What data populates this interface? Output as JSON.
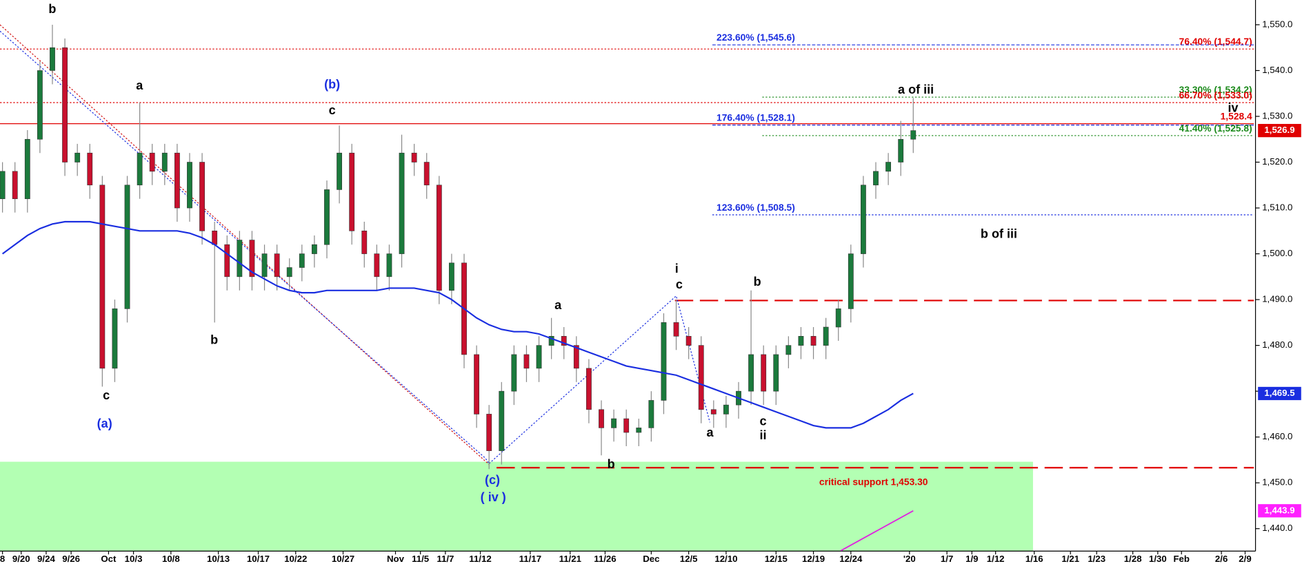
{
  "chart_data": {
    "type": "candlestick",
    "xlim": [
      -0.2,
      100.3
    ],
    "ylim": [
      1435.1,
      1555.4
    ],
    "xticks": [
      {
        "value": 0,
        "label": "8"
      },
      {
        "value": 1.5,
        "label": "9/20"
      },
      {
        "value": 3.5,
        "label": "9/24"
      },
      {
        "value": 5.5,
        "label": "9/26"
      },
      {
        "value": 8.5,
        "label": "Oct"
      },
      {
        "value": 10.5,
        "label": "10/3"
      },
      {
        "value": 13.5,
        "label": "10/8"
      },
      {
        "value": 17.3,
        "label": "10/13"
      },
      {
        "value": 20.5,
        "label": "10/17"
      },
      {
        "value": 23.5,
        "label": "10/22"
      },
      {
        "value": 27.3,
        "label": "10/27"
      },
      {
        "value": 31.5,
        "label": "Nov"
      },
      {
        "value": 33.5,
        "label": "11/5"
      },
      {
        "value": 35.5,
        "label": "11/7"
      },
      {
        "value": 38.3,
        "label": "11/12"
      },
      {
        "value": 42.3,
        "label": "11/17"
      },
      {
        "value": 45.5,
        "label": "11/21"
      },
      {
        "value": 48.3,
        "label": "11/26"
      },
      {
        "value": 52,
        "label": "Dec"
      },
      {
        "value": 55,
        "label": "12/5"
      },
      {
        "value": 58,
        "label": "12/10"
      },
      {
        "value": 62,
        "label": "12/15"
      },
      {
        "value": 65,
        "label": "12/19"
      },
      {
        "value": 68,
        "label": "12/24"
      },
      {
        "value": 72.7,
        "label": "'20"
      },
      {
        "value": 75.7,
        "label": "1/7"
      },
      {
        "value": 77.7,
        "label": "1/9"
      },
      {
        "value": 79.6,
        "label": "1/12"
      },
      {
        "value": 82.7,
        "label": "1/16"
      },
      {
        "value": 85.6,
        "label": "1/21"
      },
      {
        "value": 87.7,
        "label": "1/23"
      },
      {
        "value": 90.6,
        "label": "1/28"
      },
      {
        "value": 92.6,
        "label": "1/30"
      },
      {
        "value": 94.5,
        "label": "Feb"
      },
      {
        "value": 97.7,
        "label": "2/6"
      },
      {
        "value": 99.6,
        "label": "2/9"
      }
    ],
    "yticks": [
      {
        "value": 1440,
        "label": "1,440.0"
      },
      {
        "value": 1450,
        "label": "1,450.0"
      },
      {
        "value": 1460,
        "label": "1,460.0"
      },
      {
        "value": 1470,
        "label": "1,470.0"
      },
      {
        "value": 1480,
        "label": "1,480.0"
      },
      {
        "value": 1490,
        "label": "1,490.0"
      },
      {
        "value": 1500,
        "label": "1,500.0"
      },
      {
        "value": 1510,
        "label": "1,510.0"
      },
      {
        "value": 1520,
        "label": "1,520.0"
      },
      {
        "value": 1530,
        "label": "1,530.0"
      },
      {
        "value": 1540,
        "label": "1,540.0"
      },
      {
        "value": 1550,
        "label": "1,550.0"
      }
    ],
    "up_color": "#1b7a3c",
    "down_color": "#c8102e",
    "open": [
      1512,
      1518,
      1512,
      1525,
      1540,
      1545,
      1520,
      1522,
      1515,
      1475,
      1488,
      1515,
      1522,
      1518,
      1522,
      1510,
      1520,
      1505,
      1502,
      1495,
      1503,
      1495,
      1500,
      1495,
      1497,
      1500,
      1502,
      1514,
      1522,
      1505,
      1500,
      1495,
      1500,
      1522,
      1520,
      1515,
      1492,
      1498,
      1478,
      1465,
      1457,
      1470,
      1478,
      1475,
      1480,
      1482,
      1480,
      1475,
      1466,
      1462,
      1464,
      1461,
      1462,
      1468,
      1485,
      1482,
      1480,
      1466,
      1465,
      1467,
      1470,
      1478,
      1470,
      1478,
      1480,
      1482,
      1480,
      1484,
      1488,
      1500,
      1515,
      1518,
      1520,
      1525
    ],
    "high": [
      1520,
      1520,
      1527,
      1542,
      1550,
      1547,
      1524,
      1524,
      1517,
      1490,
      1517,
      1533,
      1524,
      1524,
      1524,
      1522,
      1522,
      1507,
      1504,
      1505,
      1505,
      1502,
      1502,
      1499,
      1502,
      1504,
      1516,
      1528,
      1524,
      1507,
      1502,
      1502,
      1526,
      1524,
      1522,
      1517,
      1500,
      1500,
      1480,
      1467,
      1472,
      1480,
      1480,
      1482,
      1486,
      1484,
      1482,
      1477,
      1468,
      1466,
      1466,
      1464,
      1470,
      1487,
      1490,
      1484,
      1482,
      1468,
      1469,
      1472,
      1492,
      1480,
      1480,
      1482,
      1484,
      1484,
      1486,
      1490,
      1502,
      1517,
      1520,
      1522,
      1529,
      1534
    ],
    "low": [
      1509,
      1509,
      1509,
      1522,
      1537,
      1517,
      1517,
      1512,
      1471,
      1472,
      1485,
      1512,
      1515,
      1515,
      1507,
      1507,
      1502,
      1485,
      1492,
      1492,
      1492,
      1492,
      1492,
      1492,
      1494,
      1497,
      1499,
      1511,
      1502,
      1497,
      1492,
      1492,
      1497,
      1517,
      1512,
      1489,
      1489,
      1475,
      1462,
      1453,
      1454,
      1467,
      1472,
      1472,
      1477,
      1477,
      1472,
      1463,
      1456,
      1459,
      1458,
      1458,
      1459,
      1465,
      1479,
      1477,
      1463,
      1462,
      1462,
      1464,
      1467,
      1467,
      1467,
      1475,
      1477,
      1477,
      1477,
      1481,
      1485,
      1497,
      1512,
      1515,
      1517,
      1522
    ],
    "close": [
      1518,
      1512,
      1525,
      1540,
      1545,
      1520,
      1522,
      1515,
      1475,
      1488,
      1515,
      1522,
      1518,
      1522,
      1510,
      1520,
      1505,
      1502,
      1495,
      1503,
      1495,
      1500,
      1495,
      1497,
      1500,
      1502,
      1514,
      1522,
      1505,
      1500,
      1495,
      1500,
      1522,
      1520,
      1515,
      1492,
      1498,
      1478,
      1465,
      1457,
      1470,
      1478,
      1475,
      1480,
      1482,
      1480,
      1475,
      1466,
      1462,
      1464,
      1461,
      1462,
      1468,
      1485,
      1482,
      1480,
      1466,
      1465,
      1467,
      1470,
      1478,
      1470,
      1478,
      1480,
      1482,
      1480,
      1484,
      1488,
      1500,
      1515,
      1518,
      1520,
      1525,
      1526.9
    ],
    "ma": {
      "color": "#1a2ee0",
      "values": [
        1500,
        1502,
        1504,
        1505.5,
        1506.5,
        1507,
        1507,
        1507,
        1506.5,
        1506,
        1505.5,
        1505,
        1505,
        1505,
        1505,
        1504.5,
        1503.5,
        1502,
        1500,
        1498,
        1496,
        1494.5,
        1493,
        1492,
        1491.5,
        1491.5,
        1492,
        1492,
        1492,
        1492,
        1492,
        1492.5,
        1492.5,
        1492.5,
        1492,
        1491.5,
        1490,
        1488,
        1486,
        1484.5,
        1483.5,
        1483,
        1483,
        1482.5,
        1481.5,
        1480.5,
        1479.5,
        1478.5,
        1477.5,
        1476.5,
        1475.5,
        1475,
        1474.5,
        1474,
        1473.5,
        1472.5,
        1471.5,
        1470.5,
        1469.5,
        1468.5,
        1467.5,
        1466.5,
        1465.5,
        1464.5,
        1463.5,
        1462.5,
        1462,
        1462,
        1462,
        1463,
        1464.5,
        1466,
        1468,
        1469.5
      ]
    },
    "ma2": {
      "color": "#e020e0",
      "x": [
        67.2,
        73
      ],
      "values": [
        1435.2,
        1443.9
      ]
    },
    "zone": {
      "top": 1454.6,
      "x_end": 82.6,
      "color": "#b3ffb3"
    },
    "trendlines": [
      {
        "color": "#d01010",
        "x": [
          -0.2,
          39
        ],
        "values": [
          1550,
          1454
        ]
      },
      {
        "color": "#1a2ee0",
        "x": [
          -0.2,
          38.7,
          39
        ],
        "values": [
          1548.6,
          1455.4,
          1454.2
        ]
      },
      {
        "color": "#1a2ee0",
        "x": [
          39,
          54,
          56.7
        ],
        "values": [
          1454.2,
          1490.8,
          1463.2
        ]
      }
    ],
    "levels": [
      {
        "value": 1544.7,
        "from": -0.2,
        "color": "#e00000",
        "style": "dotted",
        "label": "76.40% (1,544.7)"
      },
      {
        "value": 1545.6,
        "from": 56.9,
        "color": "#1a2ee0",
        "style": "dashed",
        "label": "223.60% (1,545.6)"
      },
      {
        "value": 1534.2,
        "from": 60.9,
        "color": "#1b8a1b",
        "style": "dotted",
        "label": "33.30% (1,534.2)"
      },
      {
        "value": 1533.0,
        "from": -0.2,
        "color": "#e00000",
        "style": "dotted",
        "label": "66.70% (1,533.0)"
      },
      {
        "value": 1528.4,
        "from": -0.2,
        "color": "#e00000",
        "style": "solid",
        "label": "1,528.4"
      },
      {
        "value": 1528.1,
        "from": 56.9,
        "color": "#1a2ee0",
        "style": "dashed",
        "label": "176.40% (1,528.1)"
      },
      {
        "value": 1525.8,
        "from": 60.9,
        "color": "#1b8a1b",
        "style": "dotted",
        "label": "41.40% (1,525.8)"
      },
      {
        "value": 1508.5,
        "from": 56.9,
        "color": "#1a2ee0",
        "style": "dotted",
        "label": "123.60% (1,508.5)"
      },
      {
        "value": 1489.8,
        "from": 53.9,
        "color": "#e00000",
        "style": "longdash"
      },
      {
        "value": 1453.3,
        "from": 39.6,
        "color": "#e00000",
        "style": "longdash",
        "label": "critical support 1,453.30"
      }
    ],
    "price_tags": [
      {
        "value": 1526.9,
        "label": "1,526.9",
        "color": "#e00000"
      },
      {
        "value": 1469.5,
        "label": "1,469.5",
        "color": "#1a2ee0"
      },
      {
        "value": 1443.9,
        "label": "1,443.9",
        "color": "#ff20ff"
      }
    ],
    "annotations": [
      {
        "text": "b",
        "color": "#000"
      },
      {
        "text": "a",
        "color": "#000"
      },
      {
        "text": "c",
        "color": "#000"
      },
      {
        "text": "(a)",
        "color": "#1a2ee0"
      },
      {
        "text": "(b)",
        "color": "#1a2ee0"
      },
      {
        "text": "c",
        "color": "#000"
      },
      {
        "text": "b",
        "color": "#000"
      },
      {
        "text": "a",
        "color": "#000"
      },
      {
        "text": "b",
        "color": "#000"
      },
      {
        "text": "(c)",
        "color": "#1a2ee0"
      },
      {
        "text": "( iv )",
        "color": "#1a2ee0"
      },
      {
        "text": "i",
        "color": "#000"
      },
      {
        "text": "c",
        "color": "#000"
      },
      {
        "text": "b",
        "color": "#000"
      },
      {
        "text": "a",
        "color": "#000"
      },
      {
        "text": "c",
        "color": "#000"
      },
      {
        "text": "ii",
        "color": "#000"
      },
      {
        "text": "a of iii",
        "color": "#000"
      },
      {
        "text": "iv",
        "color": "#000"
      },
      {
        "text": "b of iii",
        "color": "#000"
      }
    ]
  }
}
